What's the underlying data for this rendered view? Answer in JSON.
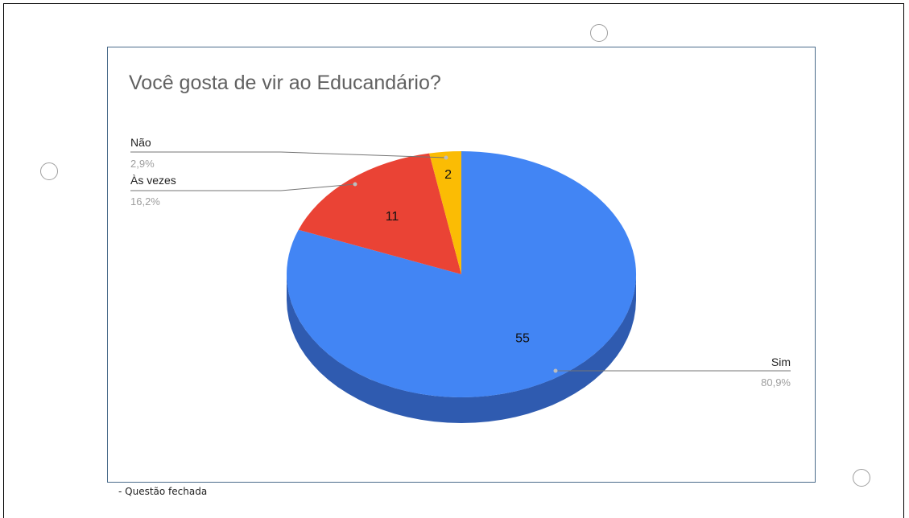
{
  "note": "- Questão fechada",
  "chart_data": {
    "type": "pie",
    "title": "Você gosta de vir ao Educandário?",
    "three_d": true,
    "slices": [
      {
        "label": "Sim",
        "value": 55,
        "percent": "80,9%",
        "color": "#4285f4",
        "side_color": "#2f5bb0"
      },
      {
        "label": "Às vezes",
        "value": 11,
        "percent": "16,2%",
        "color": "#ea4335",
        "side_color": "#a42e25"
      },
      {
        "label": "Não",
        "value": 2,
        "percent": "2,9%",
        "color": "#fbbc04",
        "side_color": "#b08400"
      }
    ],
    "legend": "labels with leader lines"
  }
}
